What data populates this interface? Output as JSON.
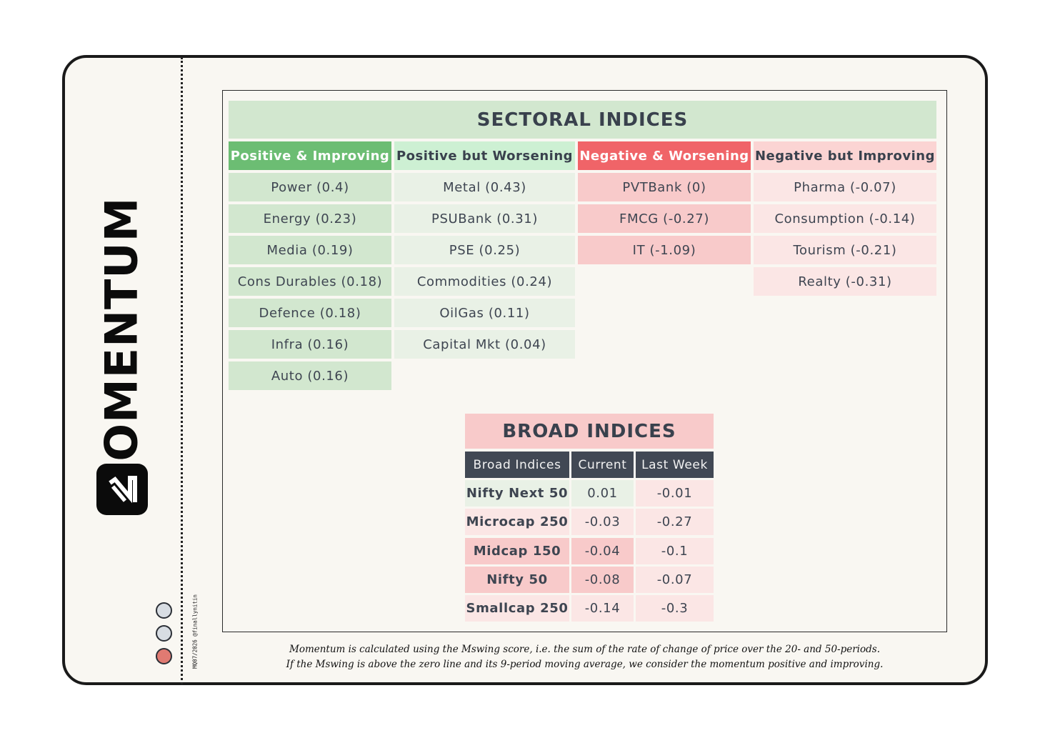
{
  "brand": {
    "name": "MOMENTUM",
    "credit": "MQ07/2026 @finallynitin"
  },
  "sectoral": {
    "title": "SECTORAL INDICES",
    "columns": [
      {
        "header": "Positive & Improving",
        "header_bg": "#6cbd73",
        "header_color": "#ffffff",
        "cell_bg": "#d2e7cf",
        "items": [
          "Power (0.4)",
          "Energy (0.23)",
          "Media (0.19)",
          "Cons Durables (0.18)",
          "Defence (0.18)",
          "Infra (0.16)",
          "Auto (0.16)"
        ]
      },
      {
        "header": "Positive but Worsening",
        "header_bg": "#cdf0d3",
        "header_color": "#39414d",
        "cell_bg": "#e9f1e6",
        "items": [
          "Metal (0.43)",
          "PSUBank (0.31)",
          "PSE (0.25)",
          "Commodities (0.24)",
          "OilGas (0.11)",
          "Capital Mkt (0.04)"
        ]
      },
      {
        "header": "Negative & Worsening",
        "header_bg": "#f06468",
        "header_color": "#ffffff",
        "cell_bg": "#f8caca",
        "items": [
          "PVTBank (0)",
          "FMCG (-0.27)",
          "IT (-1.09)"
        ]
      },
      {
        "header": "Negative but Improving",
        "header_bg": "#fbd4d3",
        "header_color": "#39414d",
        "cell_bg": "#fbe6e5",
        "items": [
          "Pharma (-0.07)",
          "Consumption (-0.14)",
          "Tourism (-0.21)",
          "Realty (-0.31)"
        ]
      }
    ]
  },
  "broad": {
    "title": "BROAD INDICES",
    "headers": [
      "Broad Indices",
      "Current",
      "Last Week"
    ],
    "rows": [
      {
        "name": "Nifty Next 50",
        "current": "0.01",
        "last": "-0.01",
        "name_bg": "#e9f1e6",
        "cur_bg": "#e9f1e6",
        "last_bg": "#fbe6e5"
      },
      {
        "name": "Microcap 250",
        "current": "-0.03",
        "last": "-0.27",
        "name_bg": "#fbe6e5",
        "cur_bg": "#fbe6e5",
        "last_bg": "#fbe6e5"
      },
      {
        "name": "Midcap 150",
        "current": "-0.04",
        "last": "-0.1",
        "name_bg": "#f8caca",
        "cur_bg": "#f8caca",
        "last_bg": "#fbe6e5"
      },
      {
        "name": "Nifty 50",
        "current": "-0.08",
        "last": "-0.07",
        "name_bg": "#f8caca",
        "cur_bg": "#f8caca",
        "last_bg": "#fbe6e5"
      },
      {
        "name": "Smallcap 250",
        "current": "-0.14",
        "last": "-0.3",
        "name_bg": "#fbe6e5",
        "cur_bg": "#fbe6e5",
        "last_bg": "#fbe6e5"
      }
    ]
  },
  "footnote": {
    "line1": "Momentum is calculated using the Mswing score, i.e. the sum of the rate of change of price over the 20- and 50-periods.",
    "line2": "If the Mswing is above the zero line and its 9-period moving average, we consider the momentum positive and improving."
  },
  "colors": {
    "sectoral_title_bg": "#d2e7cf",
    "broad_title_bg": "#f8caca",
    "dots": [
      "#d8dde3",
      "#d8dde3",
      "#e07a72"
    ]
  }
}
